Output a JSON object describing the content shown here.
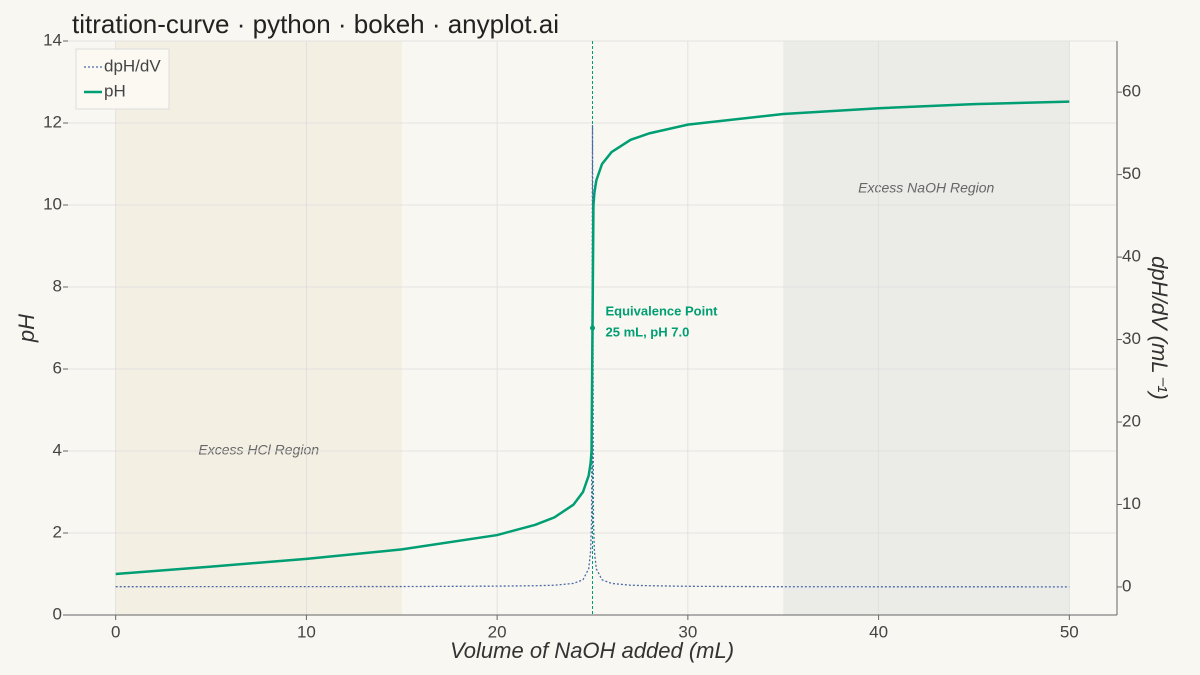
{
  "chart_data": {
    "type": "line",
    "title": "titration-curve · python · bokeh · anyplot.ai",
    "xlabel": "Volume of NaOH added (mL)",
    "ylabel": "pH",
    "y2label": "dpH/dV (mL⁻¹)",
    "x": [
      0,
      5,
      10,
      15,
      20,
      22,
      23,
      24,
      24.5,
      24.8,
      24.9,
      24.95,
      25,
      25.05,
      25.1,
      25.2,
      25.5,
      26,
      27,
      28,
      30,
      35,
      40,
      45,
      50
    ],
    "series": [
      {
        "name": "dpH/dV",
        "color": "#4a6aa8",
        "axis": "y2",
        "dash": true,
        "values": [
          0.03,
          0.04,
          0.04,
          0.05,
          0.1,
          0.15,
          0.21,
          0.43,
          0.87,
          2.2,
          4.3,
          8,
          56,
          8,
          4.3,
          2.2,
          0.87,
          0.43,
          0.21,
          0.15,
          0.08,
          0.03,
          0.02,
          0.02,
          0.01
        ]
      },
      {
        "name": "pH",
        "color": "#009E73",
        "values": [
          1.0,
          1.18,
          1.37,
          1.6,
          1.95,
          2.2,
          2.38,
          2.69,
          3.0,
          3.4,
          3.7,
          4.0,
          7.0,
          10.0,
          10.3,
          10.6,
          11.0,
          11.29,
          11.59,
          11.75,
          11.96,
          12.22,
          12.36,
          12.46,
          12.52
        ]
      }
    ],
    "xlim": [
      -2.5,
      52.5
    ],
    "xticks": [
      0,
      10,
      20,
      30,
      40,
      50
    ],
    "ylim": [
      0,
      14
    ],
    "yticks": [
      0,
      2,
      4,
      6,
      8,
      10,
      12,
      14
    ],
    "y2lim": [
      -3.4,
      66.2
    ],
    "y2ticks": [
      0,
      10,
      20,
      30,
      40,
      50,
      60
    ],
    "grid": true,
    "legend": "top-left",
    "regions": [
      {
        "x0": 0,
        "x1": 15,
        "label": "Excess HCl Region",
        "color": "#f3efe2"
      },
      {
        "x0": 35,
        "x1": 50,
        "label": "Excess NaOH Region",
        "color": "#ebebe8"
      }
    ],
    "equivalence": {
      "x": 25,
      "y": 7.0,
      "label": "Equivalence Point",
      "detail": "25 mL, pH 7.0"
    }
  }
}
